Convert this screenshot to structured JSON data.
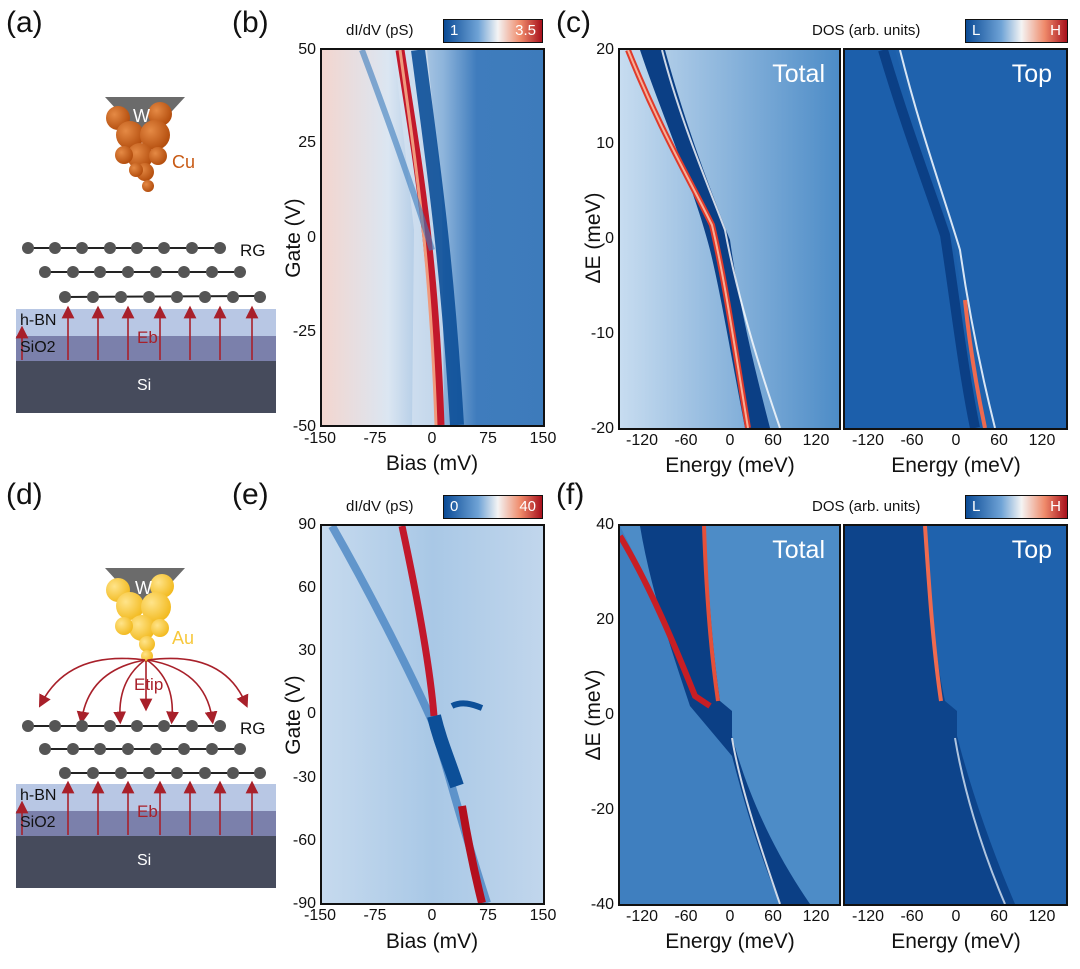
{
  "panels": {
    "a": "(a)",
    "b": "(b)",
    "c": "(c)",
    "d": "(d)",
    "e": "(e)",
    "f": "(f)"
  },
  "schematic_top": {
    "tip_core": "W",
    "tip_coating": "Cu",
    "sample": "RG",
    "hbn": "h-BN",
    "oxide": "SiO2",
    "substrate": "Si",
    "field": "Eb"
  },
  "schematic_bottom": {
    "tip_core": "W",
    "tip_coating": "Au",
    "tip_field": "Etip",
    "sample": "RG",
    "hbn": "h-BN",
    "oxide": "SiO2",
    "substrate": "Si",
    "field": "Eb"
  },
  "colors": {
    "cu": "#c85a14",
    "au": "#f7c83c",
    "arrow": "#a8202a",
    "si": "#464b5c",
    "sio2": "#7b80ab",
    "hbn": "#b8c7e4",
    "blue": "#0b4b96",
    "red": "#b40f1e"
  },
  "chart_data": [
    {
      "id": "b",
      "type": "heatmap",
      "xlabel": "Bias (mV)",
      "ylabel": "Gate (V)",
      "xlim": [
        -150,
        150
      ],
      "ylim": [
        -50,
        50
      ],
      "xticks": [
        "-150",
        "-75",
        "0",
        "75",
        "150"
      ],
      "yticks": [
        "50",
        "25",
        "0",
        "-25",
        "-50"
      ],
      "colorbar": {
        "title": "dI/dV (pS)",
        "min": "1",
        "max": "3.5"
      },
      "feature": {
        "description_points_bias_mV": [
          [
            -55,
            50
          ],
          [
            -20,
            15
          ],
          [
            0,
            -10
          ],
          [
            30,
            -50
          ]
        ]
      }
    },
    {
      "id": "c",
      "type": "heatmap",
      "ylabel": "ΔE (meV)",
      "ylim": [
        -20,
        20
      ],
      "yticks": [
        "20",
        "10",
        "0",
        "-10",
        "-20"
      ],
      "colorbar": {
        "title": "DOS (arb. units)",
        "min": "L",
        "max": "H"
      },
      "subplots": [
        {
          "title": "Total",
          "xlabel": "Energy (meV)",
          "xlim": [
            -150,
            150
          ],
          "xticks": [
            "-120",
            "-60",
            "0",
            "60",
            "120"
          ]
        },
        {
          "title": "Top",
          "xlabel": "Energy (meV)",
          "xlim": [
            -150,
            150
          ],
          "xticks": [
            "-120",
            "-60",
            "0",
            "60",
            "120"
          ]
        }
      ]
    },
    {
      "id": "e",
      "type": "heatmap",
      "xlabel": "Bias (mV)",
      "ylabel": "Gate (V)",
      "xlim": [
        -150,
        150
      ],
      "ylim": [
        -90,
        90
      ],
      "xticks": [
        "-150",
        "-75",
        "0",
        "75",
        "150"
      ],
      "yticks": [
        "90",
        "60",
        "30",
        "0",
        "-30",
        "-60",
        "-90"
      ],
      "colorbar": {
        "title": "dI/dV (pS)",
        "min": "0",
        "max": "40"
      }
    },
    {
      "id": "f",
      "type": "heatmap",
      "ylabel": "ΔE (meV)",
      "ylim": [
        -40,
        40
      ],
      "yticks": [
        "40",
        "20",
        "0",
        "-20",
        "-40"
      ],
      "colorbar": {
        "title": "DOS (arb. units)",
        "min": "L",
        "max": "H"
      },
      "subplots": [
        {
          "title": "Total",
          "xlabel": "Energy (meV)",
          "xlim": [
            -150,
            150
          ],
          "xticks": [
            "-120",
            "-60",
            "0",
            "60",
            "120"
          ]
        },
        {
          "title": "Top",
          "xlabel": "Energy (meV)",
          "xlim": [
            -150,
            150
          ],
          "xticks": [
            "-120",
            "-60",
            "0",
            "60",
            "120"
          ]
        }
      ]
    }
  ]
}
